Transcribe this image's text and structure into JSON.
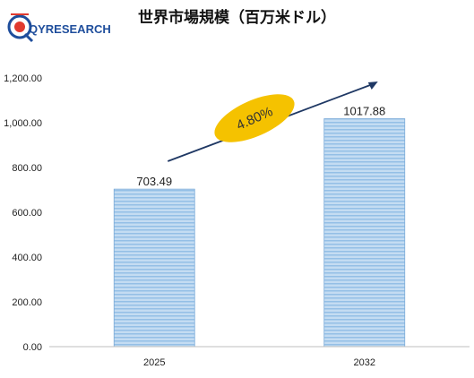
{
  "header": {
    "logo_text": "QYRESEARCH",
    "title": "世界市場規模（百万米ドル）"
  },
  "colors": {
    "bar_fill": "#b8d4ef",
    "bar_stripe": "#9cc3e6",
    "bar_stroke": "#7aaad8",
    "ellipse": "#f5c200",
    "arrow": "#1f3864",
    "logo_blue": "#1f4e9c",
    "logo_red": "#e03a2f"
  },
  "annotation": {
    "cagr_label": "4.80%"
  },
  "chart_data": {
    "type": "bar",
    "title": "世界市場規模（百万米ドル）",
    "categories": [
      "2025",
      "2032"
    ],
    "values": [
      703.49,
      1017.88
    ],
    "value_labels": [
      "703.49",
      "1017.88"
    ],
    "ylim": [
      0,
      1200
    ],
    "yticks": [
      0,
      200,
      400,
      600,
      800,
      1000,
      1200
    ],
    "ytick_labels": [
      "0.00",
      "200.00",
      "400.00",
      "600.00",
      "800.00",
      "1,000.00",
      "1,200.00"
    ],
    "xlabel": "",
    "ylabel": "",
    "grid": false,
    "legend": "none"
  }
}
